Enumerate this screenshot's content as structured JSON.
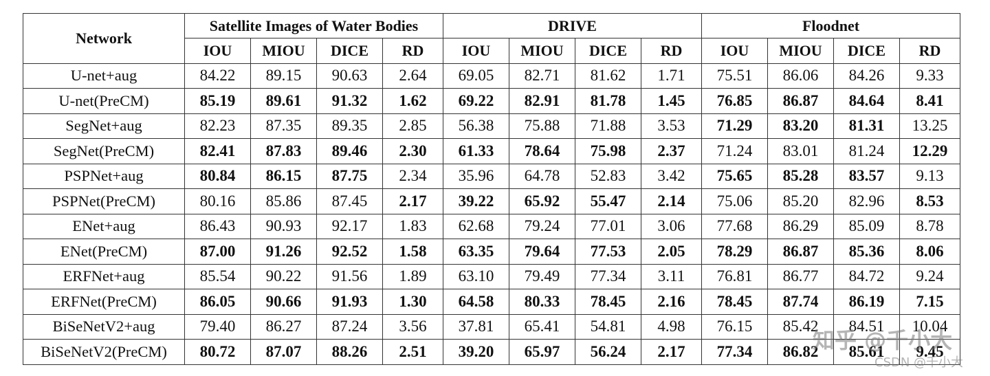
{
  "table": {
    "network_header": "Network",
    "groups": [
      "Satellite Images of Water Bodies",
      "DRIVE",
      "Floodnet"
    ],
    "metrics": [
      "IOU",
      "MIOU",
      "DICE",
      "RD"
    ],
    "rows": [
      {
        "name": "U-net+aug",
        "cells": [
          [
            "84.22",
            0
          ],
          [
            "89.15",
            0
          ],
          [
            "90.63",
            0
          ],
          [
            "2.64",
            0
          ],
          [
            "69.05",
            0
          ],
          [
            "82.71",
            0
          ],
          [
            "81.62",
            0
          ],
          [
            "1.71",
            0
          ],
          [
            "75.51",
            0
          ],
          [
            "86.06",
            0
          ],
          [
            "84.26",
            0
          ],
          [
            "9.33",
            0
          ]
        ]
      },
      {
        "name": "U-net(PreCM)",
        "cells": [
          [
            "85.19",
            1
          ],
          [
            "89.61",
            1
          ],
          [
            "91.32",
            1
          ],
          [
            "1.62",
            1
          ],
          [
            "69.22",
            1
          ],
          [
            "82.91",
            1
          ],
          [
            "81.78",
            1
          ],
          [
            "1.45",
            1
          ],
          [
            "76.85",
            1
          ],
          [
            "86.87",
            1
          ],
          [
            "84.64",
            1
          ],
          [
            "8.41",
            1
          ]
        ]
      },
      {
        "name": "SegNet+aug",
        "cells": [
          [
            "82.23",
            0
          ],
          [
            "87.35",
            0
          ],
          [
            "89.35",
            0
          ],
          [
            "2.85",
            0
          ],
          [
            "56.38",
            0
          ],
          [
            "75.88",
            0
          ],
          [
            "71.88",
            0
          ],
          [
            "3.53",
            0
          ],
          [
            "71.29",
            1
          ],
          [
            "83.20",
            1
          ],
          [
            "81.31",
            1
          ],
          [
            "13.25",
            0
          ]
        ]
      },
      {
        "name": "SegNet(PreCM)",
        "cells": [
          [
            "82.41",
            1
          ],
          [
            "87.83",
            1
          ],
          [
            "89.46",
            1
          ],
          [
            "2.30",
            1
          ],
          [
            "61.33",
            1
          ],
          [
            "78.64",
            1
          ],
          [
            "75.98",
            1
          ],
          [
            "2.37",
            1
          ],
          [
            "71.24",
            0
          ],
          [
            "83.01",
            0
          ],
          [
            "81.24",
            0
          ],
          [
            "12.29",
            1
          ]
        ]
      },
      {
        "name": "PSPNet+aug",
        "cells": [
          [
            "80.84",
            1
          ],
          [
            "86.15",
            1
          ],
          [
            "87.75",
            1
          ],
          [
            "2.34",
            0
          ],
          [
            "35.96",
            0
          ],
          [
            "64.78",
            0
          ],
          [
            "52.83",
            0
          ],
          [
            "3.42",
            0
          ],
          [
            "75.65",
            1
          ],
          [
            "85.28",
            1
          ],
          [
            "83.57",
            1
          ],
          [
            "9.13",
            0
          ]
        ]
      },
      {
        "name": "PSPNet(PreCM)",
        "cells": [
          [
            "80.16",
            0
          ],
          [
            "85.86",
            0
          ],
          [
            "87.45",
            0
          ],
          [
            "2.17",
            1
          ],
          [
            "39.22",
            1
          ],
          [
            "65.92",
            1
          ],
          [
            "55.47",
            1
          ],
          [
            "2.14",
            1
          ],
          [
            "75.06",
            0
          ],
          [
            "85.20",
            0
          ],
          [
            "82.96",
            0
          ],
          [
            "8.53",
            1
          ]
        ]
      },
      {
        "name": "ENet+aug",
        "cells": [
          [
            "86.43",
            0
          ],
          [
            "90.93",
            0
          ],
          [
            "92.17",
            0
          ],
          [
            "1.83",
            0
          ],
          [
            "62.68",
            0
          ],
          [
            "79.24",
            0
          ],
          [
            "77.01",
            0
          ],
          [
            "3.06",
            0
          ],
          [
            "77.68",
            0
          ],
          [
            "86.29",
            0
          ],
          [
            "85.09",
            0
          ],
          [
            "8.78",
            0
          ]
        ]
      },
      {
        "name": "ENet(PreCM)",
        "cells": [
          [
            "87.00",
            1
          ],
          [
            "91.26",
            1
          ],
          [
            "92.52",
            1
          ],
          [
            "1.58",
            1
          ],
          [
            "63.35",
            1
          ],
          [
            "79.64",
            1
          ],
          [
            "77.53",
            1
          ],
          [
            "2.05",
            1
          ],
          [
            "78.29",
            1
          ],
          [
            "86.87",
            1
          ],
          [
            "85.36",
            1
          ],
          [
            "8.06",
            1
          ]
        ]
      },
      {
        "name": "ERFNet+aug",
        "cells": [
          [
            "85.54",
            0
          ],
          [
            "90.22",
            0
          ],
          [
            "91.56",
            0
          ],
          [
            "1.89",
            0
          ],
          [
            "63.10",
            0
          ],
          [
            "79.49",
            0
          ],
          [
            "77.34",
            0
          ],
          [
            "3.11",
            0
          ],
          [
            "76.81",
            0
          ],
          [
            "86.77",
            0
          ],
          [
            "84.72",
            0
          ],
          [
            "9.24",
            0
          ]
        ]
      },
      {
        "name": "ERFNet(PreCM)",
        "cells": [
          [
            "86.05",
            1
          ],
          [
            "90.66",
            1
          ],
          [
            "91.93",
            1
          ],
          [
            "1.30",
            1
          ],
          [
            "64.58",
            1
          ],
          [
            "80.33",
            1
          ],
          [
            "78.45",
            1
          ],
          [
            "2.16",
            1
          ],
          [
            "78.45",
            1
          ],
          [
            "87.74",
            1
          ],
          [
            "86.19",
            1
          ],
          [
            "7.15",
            1
          ]
        ]
      },
      {
        "name": "BiSeNetV2+aug",
        "cells": [
          [
            "79.40",
            0
          ],
          [
            "86.27",
            0
          ],
          [
            "87.24",
            0
          ],
          [
            "3.56",
            0
          ],
          [
            "37.81",
            0
          ],
          [
            "65.41",
            0
          ],
          [
            "54.81",
            0
          ],
          [
            "4.98",
            0
          ],
          [
            "76.15",
            0
          ],
          [
            "85.42",
            0
          ],
          [
            "84.51",
            0
          ],
          [
            "10.04",
            0
          ]
        ]
      },
      {
        "name": "BiSeNetV2(PreCM)",
        "cells": [
          [
            "80.72",
            1
          ],
          [
            "87.07",
            1
          ],
          [
            "88.26",
            1
          ],
          [
            "2.51",
            1
          ],
          [
            "39.20",
            1
          ],
          [
            "65.97",
            1
          ],
          [
            "56.24",
            1
          ],
          [
            "2.17",
            1
          ],
          [
            "77.34",
            1
          ],
          [
            "86.82",
            1
          ],
          [
            "85.61",
            1
          ],
          [
            "9.45",
            1
          ]
        ]
      }
    ]
  },
  "watermark": {
    "line1": "知乎 @千小大",
    "line2": "CSDN @千小大"
  }
}
